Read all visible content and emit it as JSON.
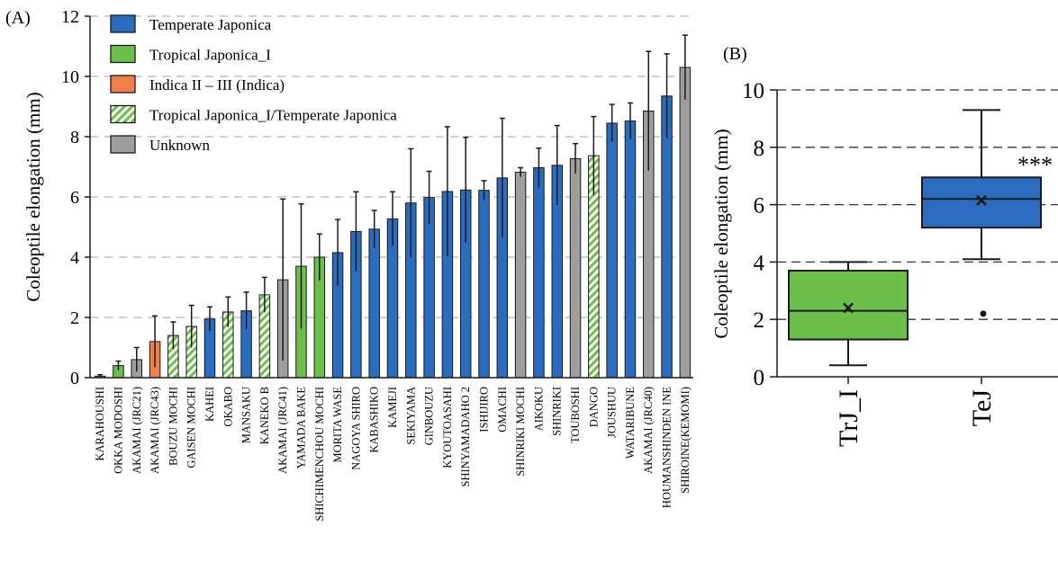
{
  "colors": {
    "temperate": "#2c6cbf",
    "tropical": "#6cbf4a",
    "indica": "#f07f4a",
    "unknown": "#9e9e9e",
    "hatch": "#6cbf4a"
  },
  "chart_data": [
    {
      "type": "bar",
      "panel_label": "(A)",
      "ylabel": "Coleoptile elongation (mm)",
      "ylim": [
        0,
        12
      ],
      "yticks": [
        0,
        2,
        4,
        6,
        8,
        10,
        12
      ],
      "grid": "horizontal dashed",
      "legend_position": "top-left",
      "legend": [
        {
          "label": "Temperate Japonica",
          "group": "temperate"
        },
        {
          "label": "Tropical Japonica_I",
          "group": "tropical"
        },
        {
          "label": "Indica II – III (Indica)",
          "group": "indica"
        },
        {
          "label": "Tropical Japonica_I/Temperate Japonica",
          "group": "hatch"
        },
        {
          "label": "Unknown",
          "group": "unknown"
        }
      ],
      "categories": [
        "KARAHOUSHI",
        "OKKA MODOSHI",
        "AKAMAI (JRC21)",
        "AKAMAI (JRC43)",
        "BOUZU MOCHI",
        "GAISEN MOCHI",
        "KAHEI",
        "OKABO",
        "MANSAKU",
        "KANEKO B",
        "AKAMAI (JRC41)",
        "YAMADA BAKE",
        "SHICHIMENCHOU MOCHI",
        "MORITA WASE",
        "NAGOYA SHIRO",
        "KABASHIKO",
        "KAMEJI",
        "SEKIYAMA",
        "GINBOUZU",
        "KYOUTOASAHI",
        "SHINYAMADAHO 2",
        "ISHIJIRO",
        "OMACHI",
        "SHINRIKI MOCHI",
        "AIKOKU",
        "SHINRIKI",
        "TOUBOSHI",
        "DANGO",
        "JOUSHUU",
        "WATARIBUNE",
        "AKAMAI (JRC40)",
        "HOUMANSHINDEN INE",
        "SHIROINE(KEMOMI)"
      ],
      "values": [
        0.05,
        0.4,
        0.6,
        1.2,
        1.4,
        1.7,
        1.95,
        2.18,
        2.22,
        2.75,
        3.25,
        3.7,
        4.0,
        4.15,
        4.85,
        4.93,
        5.27,
        5.8,
        5.98,
        6.18,
        6.23,
        6.22,
        6.63,
        6.82,
        6.97,
        7.05,
        7.27,
        7.37,
        8.45,
        8.52,
        8.85,
        9.35,
        10.3
      ],
      "errors": [
        0.05,
        0.15,
        0.4,
        0.85,
        0.45,
        0.7,
        0.4,
        0.5,
        0.62,
        0.58,
        2.68,
        2.07,
        0.77,
        1.1,
        1.32,
        0.62,
        0.9,
        1.8,
        0.87,
        2.15,
        1.75,
        0.32,
        1.98,
        0.15,
        0.65,
        1.32,
        0.5,
        1.3,
        0.62,
        0.6,
        1.98,
        1.4,
        1.07
      ],
      "groups": [
        "unknown",
        "tropical",
        "unknown",
        "indica",
        "hatch",
        "hatch",
        "temperate",
        "hatch",
        "temperate",
        "hatch",
        "unknown",
        "tropical",
        "tropical",
        "temperate",
        "temperate",
        "temperate",
        "temperate",
        "temperate",
        "temperate",
        "temperate",
        "temperate",
        "temperate",
        "temperate",
        "unknown",
        "temperate",
        "temperate",
        "unknown",
        "hatch",
        "temperate",
        "temperate",
        "unknown",
        "temperate",
        "unknown"
      ]
    },
    {
      "type": "box",
      "panel_label": "(B)",
      "ylabel": "Coleoptile elongation (mm)",
      "ylim": [
        0,
        10
      ],
      "yticks": [
        0,
        2,
        4,
        6,
        8,
        10
      ],
      "grid": "horizontal dashed",
      "categories": [
        "TrJ_I",
        "TeJ"
      ],
      "boxes": [
        {
          "name": "TrJ_I",
          "group": "tropical",
          "whisker_low": 0.4,
          "q1": 1.3,
          "median": 2.3,
          "q3": 3.7,
          "whisker_high": 4.0,
          "mean": 2.4,
          "outliers": []
        },
        {
          "name": "TeJ",
          "group": "temperate",
          "whisker_low": 4.1,
          "q1": 5.2,
          "median": 6.2,
          "q3": 6.95,
          "whisker_high": 9.3,
          "mean": 6.15,
          "outliers": [
            2.2
          ]
        }
      ],
      "annotation": "***"
    }
  ]
}
